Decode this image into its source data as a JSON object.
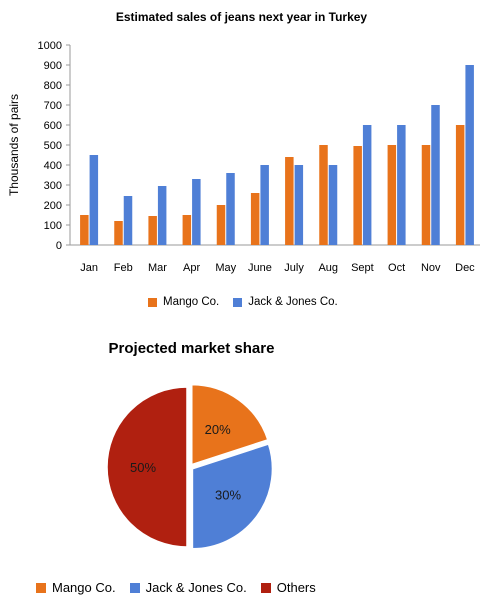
{
  "chart_data": [
    {
      "type": "bar",
      "title": "Estimated sales of jeans next year in Turkey",
      "ylabel": "Thousands of pairs",
      "xlabel": "",
      "ylim": [
        0,
        1000
      ],
      "yticks": [
        0,
        100,
        200,
        300,
        400,
        500,
        600,
        700,
        800,
        900,
        1000
      ],
      "categories": [
        "Jan",
        "Feb",
        "Mar",
        "Apr",
        "May",
        "June",
        "July",
        "Aug",
        "Sept",
        "Oct",
        "Nov",
        "Dec"
      ],
      "series": [
        {
          "name": "Mango Co.",
          "color": "#e8731b",
          "values": [
            150,
            120,
            145,
            150,
            200,
            260,
            440,
            500,
            495,
            500,
            500,
            600
          ]
        },
        {
          "name": "Jack & Jones Co.",
          "color": "#4f7fd6",
          "values": [
            450,
            245,
            295,
            330,
            360,
            400,
            400,
            400,
            600,
            600,
            700,
            900
          ]
        }
      ],
      "grid": false,
      "legend_position": "bottom"
    },
    {
      "type": "pie",
      "title": "Projected market share",
      "categories": [
        "Mango Co.",
        "Jack & Jones Co.",
        "Others"
      ],
      "values": [
        20,
        30,
        50
      ],
      "labels": [
        "20%",
        "30%",
        "50%"
      ],
      "colors": [
        "#e8731b",
        "#4f7fd6",
        "#b02010"
      ],
      "legend_position": "bottom"
    }
  ]
}
